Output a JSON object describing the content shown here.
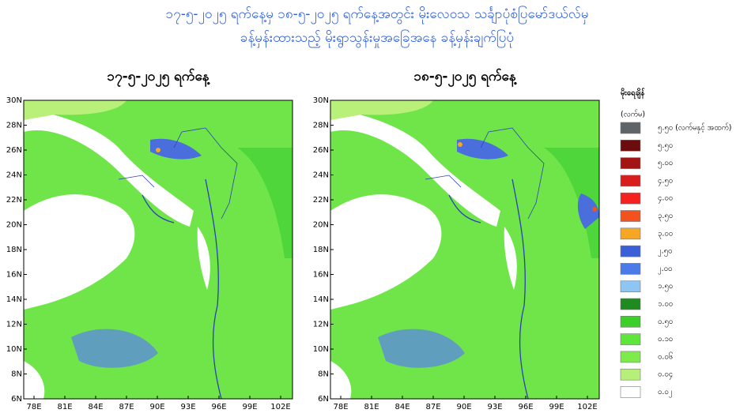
{
  "header": {
    "title_line1": "၁၇-၅-၂၀၂၅ ရက်နေ့မှ ၁၈-၅-၂၀၂၅ ရက်နေ့အတွင်း မိုးလေဝသ သင်္ချာပုံစံပြမော်ဒယ်လ်မှ",
    "title_line2": "ခန့်မှန်းထားသည့် မိုးရွာသွန်းမှုအခြေအနေ ခန့်မှန်းချက်ပြပုံ"
  },
  "panels": [
    {
      "title": "၁၇-၅-၂၀၂၅ ရက်နေ့"
    },
    {
      "title": "၁၈-၅-၂၀၂၅ ရက်နေ့"
    }
  ],
  "lat_labels": [
    "30N",
    "28N",
    "26N",
    "24N",
    "22N",
    "20N",
    "18N",
    "16N",
    "14N",
    "12N",
    "10N",
    "8N",
    "6N"
  ],
  "lon_labels": [
    "78E",
    "81E",
    "84E",
    "87E",
    "90E",
    "93E",
    "96E",
    "99E",
    "102E"
  ],
  "legend": {
    "title": "မိုးရေချိန်",
    "unit": "(လက်မ)",
    "items": [
      {
        "label": "၅.၅၀ (လက်မနှင့် အထက်)",
        "color": "#5f6468"
      },
      {
        "label": "၅.၅၀",
        "color": "#6b0d0d"
      },
      {
        "label": "၅.၀၀",
        "color": "#a31515"
      },
      {
        "label": "၄.၅၀",
        "color": "#d91c1c"
      },
      {
        "label": "၄.၀၀",
        "color": "#f52020"
      },
      {
        "label": "၃.၅၀",
        "color": "#f2521e"
      },
      {
        "label": "၃.၀၀",
        "color": "#f5a623"
      },
      {
        "label": "၂.၅၀",
        "color": "#3b5fd6"
      },
      {
        "label": "၂.၀၀",
        "color": "#4a7be8"
      },
      {
        "label": "၁.၅၀",
        "color": "#8ec5f2"
      },
      {
        "label": "၁.၀၀",
        "color": "#1f8a1f"
      },
      {
        "label": "၀.၅၀",
        "color": "#3ccf2a"
      },
      {
        "label": "၀.၁၀",
        "color": "#5fe63a"
      },
      {
        "label": "၀.၀၆",
        "color": "#7dec4a"
      },
      {
        "label": "၀.၀၄",
        "color": "#b6f07a"
      },
      {
        "label": "၀.၀၂",
        "color": "#ffffff"
      }
    ]
  }
}
